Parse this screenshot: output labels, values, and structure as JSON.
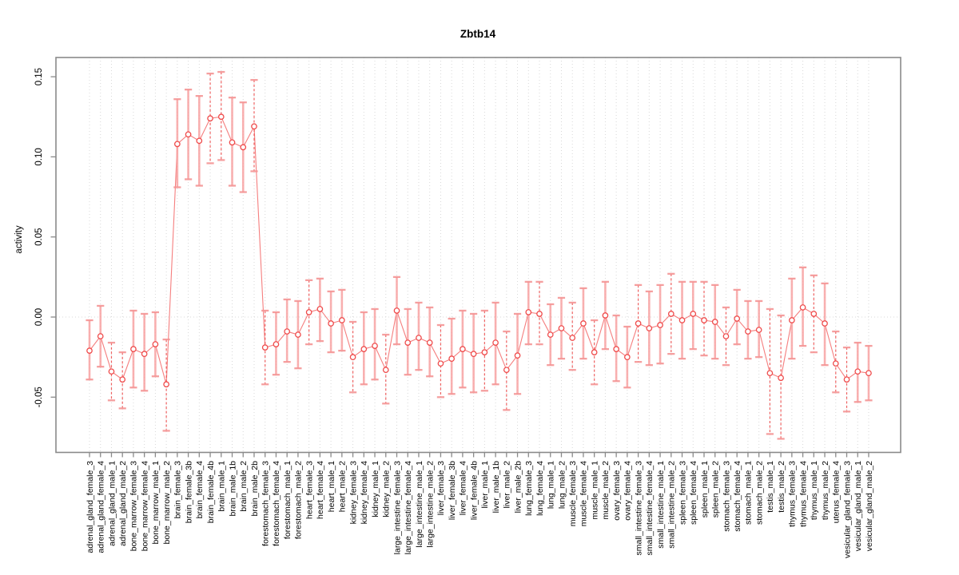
{
  "chart_data": {
    "type": "line",
    "title": "Zbtb14",
    "xlabel": "",
    "ylabel": "activity",
    "ylim": [
      -0.084,
      0.163
    ],
    "yticks": [
      0.15,
      0.1,
      0.05,
      0.0,
      -0.05
    ],
    "ytick_labels": [
      "0.15",
      "0.10",
      "0.05",
      "0.00",
      "-0.05"
    ],
    "grid": {
      "vertical_per_category": true,
      "zero_line": true,
      "style": "dotted"
    },
    "legend": null,
    "marker": "open-circle",
    "error_bars": true,
    "categories": [
      "adrenal_gland_female_3",
      "adrenal_gland_female_4",
      "adrenal_gland_male_1",
      "adrenal_gland_male_2",
      "bone_marrow_female_3",
      "bone_marrow_female_4",
      "bone_marrow_male_1",
      "bone_marrow_male_2",
      "brain_female_3",
      "brain_female_3b",
      "brain_female_4",
      "brain_female_4b",
      "brain_male_1",
      "brain_male_1b",
      "brain_male_2",
      "brain_male_2b",
      "forestomach_female_3",
      "forestomach_female_4",
      "forestomach_male_1",
      "forestomach_male_2",
      "heart_female_3",
      "heart_female_4",
      "heart_male_1",
      "heart_male_2",
      "kidney_female_3",
      "kidney_female_4",
      "kidney_male_1",
      "kidney_male_2",
      "large_intestine_female_3",
      "large_intestine_female_4",
      "large_intestine_male_1",
      "large_intestine_male_2",
      "liver_female_3",
      "liver_female_3b",
      "liver_female_4",
      "liver_female_4b",
      "liver_male_1",
      "liver_male_1b",
      "liver_male_2",
      "liver_male_2b",
      "lung_female_3",
      "lung_female_4",
      "lung_male_1",
      "lung_male_2",
      "muscle_female_3",
      "muscle_female_4",
      "muscle_male_1",
      "muscle_male_2",
      "ovary_female_3",
      "ovary_female_4",
      "small_intestine_female_3",
      "small_intestine_female_4",
      "small_intestine_male_1",
      "small_intestine_male_2",
      "spleen_female_3",
      "spleen_female_4",
      "spleen_male_1",
      "spleen_male_2",
      "stomach_female_3",
      "stomach_female_4",
      "stomach_male_1",
      "stomach_male_2",
      "testis_male_1",
      "testis_male_2",
      "thymus_female_3",
      "thymus_female_4",
      "thymus_male_1",
      "thymus_male_2",
      "uterus_female_4",
      "vesicular_gland_female_3",
      "vesicular_gland_male_1",
      "vesicular_gland_male_2"
    ],
    "series": [
      {
        "name": "activity",
        "values": [
          -0.021,
          -0.012,
          -0.034,
          -0.039,
          -0.02,
          -0.023,
          -0.017,
          -0.042,
          0.108,
          0.114,
          0.11,
          0.124,
          0.125,
          0.109,
          0.106,
          0.119,
          -0.019,
          -0.017,
          -0.009,
          -0.011,
          0.003,
          0.005,
          -0.004,
          -0.002,
          -0.025,
          -0.02,
          -0.018,
          -0.033,
          0.004,
          -0.016,
          -0.013,
          -0.016,
          -0.029,
          -0.026,
          -0.02,
          -0.023,
          -0.022,
          -0.016,
          -0.033,
          -0.024,
          0.003,
          0.002,
          -0.011,
          -0.007,
          -0.013,
          -0.004,
          -0.022,
          0.001,
          -0.02,
          -0.025,
          -0.004,
          -0.007,
          -0.005,
          0.002,
          -0.002,
          0.002,
          -0.002,
          -0.003,
          -0.012,
          -0.001,
          -0.009,
          -0.008,
          -0.035,
          -0.038,
          -0.002,
          0.006,
          0.002,
          -0.004,
          -0.029,
          -0.039,
          -0.034,
          -0.035
        ],
        "lower": [
          -0.039,
          -0.031,
          -0.052,
          -0.057,
          -0.044,
          -0.046,
          -0.037,
          -0.071,
          0.081,
          0.086,
          0.082,
          0.096,
          0.098,
          0.082,
          0.078,
          0.091,
          -0.042,
          -0.036,
          -0.028,
          -0.032,
          -0.017,
          -0.015,
          -0.022,
          -0.021,
          -0.047,
          -0.042,
          -0.039,
          -0.054,
          -0.017,
          -0.036,
          -0.033,
          -0.037,
          -0.05,
          -0.048,
          -0.044,
          -0.047,
          -0.046,
          -0.042,
          -0.058,
          -0.048,
          -0.017,
          -0.017,
          -0.03,
          -0.026,
          -0.033,
          -0.026,
          -0.042,
          -0.02,
          -0.04,
          -0.044,
          -0.028,
          -0.03,
          -0.029,
          -0.023,
          -0.026,
          -0.02,
          -0.024,
          -0.026,
          -0.03,
          -0.017,
          -0.026,
          -0.025,
          -0.073,
          -0.076,
          -0.026,
          -0.018,
          -0.022,
          -0.03,
          -0.047,
          -0.059,
          -0.053,
          -0.052
        ],
        "upper": [
          -0.002,
          0.007,
          -0.016,
          -0.022,
          0.004,
          0.002,
          0.003,
          -0.014,
          0.136,
          0.142,
          0.138,
          0.152,
          0.153,
          0.137,
          0.134,
          0.148,
          0.004,
          0.003,
          0.011,
          0.01,
          0.023,
          0.024,
          0.016,
          0.017,
          -0.003,
          0.003,
          0.005,
          -0.011,
          0.025,
          0.005,
          0.009,
          0.006,
          -0.005,
          -0.001,
          0.004,
          0.002,
          0.004,
          0.009,
          -0.009,
          0.002,
          0.022,
          0.022,
          0.008,
          0.012,
          0.009,
          0.018,
          -0.002,
          0.022,
          0.001,
          -0.006,
          0.02,
          0.016,
          0.02,
          0.027,
          0.022,
          0.022,
          0.022,
          0.02,
          0.006,
          0.017,
          0.01,
          0.01,
          0.005,
          0.001,
          0.024,
          0.031,
          0.026,
          0.021,
          -0.009,
          -0.019,
          -0.016,
          -0.018
        ]
      }
    ],
    "colors": {
      "point": "#ef4b4b",
      "line": "#f47070",
      "error_bar": "#f8a3a3",
      "error_bar_dashed": "#ee4848",
      "cap": "#f59595",
      "grid": "#d8d8d8",
      "axis": "#8a8a8a",
      "text": "#000000",
      "background": "#ffffff"
    }
  }
}
